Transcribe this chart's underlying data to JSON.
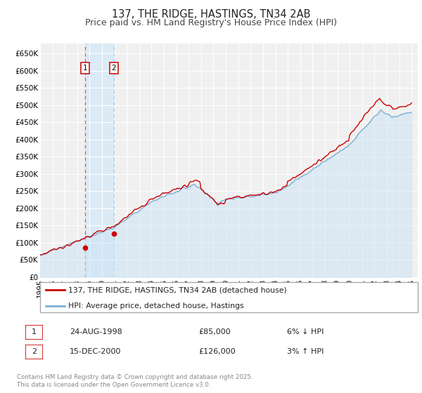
{
  "title": "137, THE RIDGE, HASTINGS, TN34 2AB",
  "subtitle": "Price paid vs. HM Land Registry's House Price Index (HPI)",
  "xlim": [
    1995.0,
    2025.5
  ],
  "ylim": [
    0,
    680000
  ],
  "yticks": [
    0,
    50000,
    100000,
    150000,
    200000,
    250000,
    300000,
    350000,
    400000,
    450000,
    500000,
    550000,
    600000,
    650000
  ],
  "ytick_labels": [
    "£0",
    "£50K",
    "£100K",
    "£150K",
    "£200K",
    "£250K",
    "£300K",
    "£350K",
    "£400K",
    "£450K",
    "£500K",
    "£550K",
    "£600K",
    "£650K"
  ],
  "xticks": [
    1995,
    1996,
    1997,
    1998,
    1999,
    2000,
    2001,
    2002,
    2003,
    2004,
    2005,
    2006,
    2007,
    2008,
    2009,
    2010,
    2011,
    2012,
    2013,
    2014,
    2015,
    2016,
    2017,
    2018,
    2019,
    2020,
    2021,
    2022,
    2023,
    2024,
    2025
  ],
  "sale1_x": 1998.65,
  "sale1_y": 85000,
  "sale1_label": "1",
  "sale1_date": "24-AUG-1998",
  "sale1_price": "£85,000",
  "sale1_hpi": "6% ↓ HPI",
  "sale2_x": 2000.96,
  "sale2_y": 126000,
  "sale2_label": "2",
  "sale2_date": "15-DEC-2000",
  "sale2_price": "£126,000",
  "sale2_hpi": "3% ↑ HPI",
  "property_line_color": "#cc0000",
  "hpi_line_color": "#7bafd4",
  "hpi_fill_color": "#ddeeff",
  "background_color": "#ffffff",
  "plot_bg_color": "#f0f0f0",
  "grid_color": "#ffffff",
  "legend_label1": "137, THE RIDGE, HASTINGS, TN34 2AB (detached house)",
  "legend_label2": "HPI: Average price, detached house, Hastings",
  "footnote": "Contains HM Land Registry data © Crown copyright and database right 2025.\nThis data is licensed under the Open Government Licence v3.0.",
  "title_fontsize": 10.5,
  "subtitle_fontsize": 9,
  "tick_fontsize": 7.5,
  "shade_x1": 1998.65,
  "shade_x2": 2000.96,
  "sale_box_color": "#cc0000"
}
